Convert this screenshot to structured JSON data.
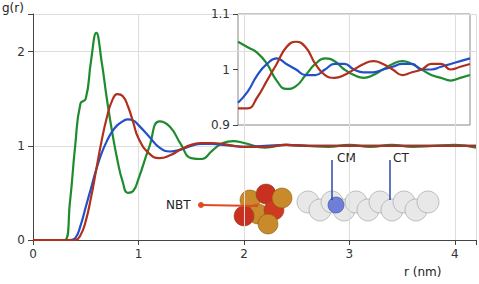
{
  "chart_data": [
    {
      "type": "line",
      "x_label": "r (nm)",
      "y_label": "g(r)",
      "annotations": [
        "NBT",
        "CM",
        "CT"
      ],
      "grid": true,
      "xlim": [
        0,
        4.2
      ],
      "xticks": [
        0,
        1,
        2,
        3,
        4
      ],
      "ylim": [
        0,
        2.4
      ],
      "yticks": [
        0,
        1,
        2
      ],
      "x": [
        0,
        0.3,
        0.35,
        0.4,
        0.45,
        0.5,
        0.55,
        0.6,
        0.65,
        0.7,
        0.75,
        0.8,
        0.85,
        0.9,
        0.95,
        1.0,
        1.1,
        1.2,
        1.3,
        1.4,
        1.5,
        1.6,
        1.7,
        1.8,
        1.9,
        2.0,
        2.2,
        2.4,
        2.6,
        2.8,
        3.0,
        3.2,
        3.4,
        3.6,
        3.8,
        4.0,
        4.2
      ],
      "series": [
        {
          "color": "#1e8c2e",
          "values": [
            0,
            0,
            0.4,
            1.0,
            1.45,
            1.5,
            1.9,
            2.2,
            1.9,
            1.5,
            1.15,
            0.85,
            0.62,
            0.5,
            0.52,
            0.65,
            0.98,
            1.26,
            1.2,
            1.02,
            0.87,
            0.86,
            0.95,
            1.03,
            1.05,
            1.03,
            0.98,
            1.01,
            1.0,
            0.99,
            1.01,
            0.99,
            1.01,
            0.99,
            1.0,
            1.01,
            0.98
          ]
        },
        {
          "color": "#2350c8",
          "values": [
            0,
            0,
            0,
            0.02,
            0.15,
            0.35,
            0.55,
            0.75,
            0.92,
            1.05,
            1.15,
            1.22,
            1.26,
            1.28,
            1.27,
            1.22,
            1.1,
            0.98,
            0.94,
            0.96,
            1.0,
            1.02,
            1.02,
            1.01,
            1.0,
            0.99,
            1.0,
            1.01,
            1.0,
            1.0,
            1.0,
            1.0,
            1.0,
            1.0,
            1.0,
            1.0,
            1.0
          ]
        },
        {
          "color": "#b0301f",
          "values": [
            0,
            0,
            0,
            0,
            0.05,
            0.2,
            0.45,
            0.75,
            1.05,
            1.3,
            1.48,
            1.55,
            1.53,
            1.42,
            1.25,
            1.08,
            0.92,
            0.87,
            0.9,
            0.96,
            1.01,
            1.03,
            1.03,
            1.02,
            1.0,
            0.99,
            0.99,
            1.01,
            1.0,
            1.0,
            1.0,
            1.0,
            1.0,
            1.0,
            1.0,
            1.0,
            1.0
          ]
        }
      ]
    },
    {
      "type": "line",
      "grid": false,
      "tick_labels": "y",
      "xlim": [
        1.8,
        4.2
      ],
      "ylim": [
        0.9,
        1.1
      ],
      "yticks": [
        0.9,
        1,
        1.1
      ],
      "x": [
        1.8,
        1.9,
        2.0,
        2.1,
        2.2,
        2.3,
        2.4,
        2.5,
        2.6,
        2.7,
        2.8,
        2.9,
        3.0,
        3.1,
        3.2,
        3.3,
        3.4,
        3.5,
        3.6,
        3.7,
        3.8,
        3.9,
        4.0,
        4.1,
        4.2
      ],
      "series": [
        {
          "color": "#1e8c2e",
          "values": [
            1.05,
            1.04,
            1.03,
            1.01,
            0.98,
            0.965,
            0.97,
            0.99,
            1.01,
            1.02,
            1.015,
            1.0,
            0.99,
            0.985,
            0.99,
            1.0,
            1.01,
            1.015,
            1.01,
            1.0,
            0.99,
            0.985,
            0.98,
            0.985,
            0.99
          ]
        },
        {
          "color": "#2350c8",
          "values": [
            0.94,
            0.96,
            0.99,
            1.01,
            1.02,
            1.01,
            1.0,
            0.99,
            0.99,
            1.0,
            1.01,
            1.01,
            1.0,
            0.995,
            0.995,
            1.0,
            1.005,
            1.01,
            1.01,
            1.0,
            1.0,
            1.005,
            1.01,
            1.015,
            1.02
          ]
        },
        {
          "color": "#b0301f",
          "values": [
            0.93,
            0.93,
            0.95,
            0.98,
            1.01,
            1.04,
            1.05,
            1.04,
            1.01,
            0.99,
            0.985,
            0.99,
            1.0,
            1.01,
            1.015,
            1.01,
            1.0,
            0.99,
            0.995,
            1.0,
            1.01,
            1.01,
            1.0,
            1.005,
            1.01
          ]
        }
      ]
    }
  ]
}
